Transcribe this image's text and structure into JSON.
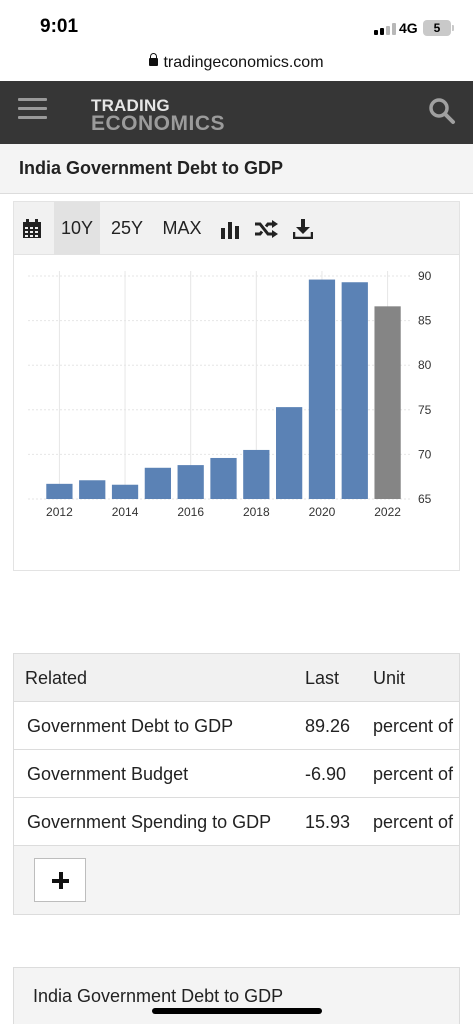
{
  "status_bar": {
    "time": "9:01",
    "network": "4G",
    "battery": "5"
  },
  "url_bar": {
    "url": "tradingeconomics.com"
  },
  "header": {
    "logo_line1": "TRADING",
    "logo_line2": "ECONOMICS"
  },
  "page": {
    "title": "India Government Debt to GDP"
  },
  "toolbar": {
    "items": [
      "10Y",
      "25Y",
      "MAX"
    ],
    "active": "10Y",
    "icons": [
      "calendar-icon",
      "bar-chart-icon",
      "shuffle-icon",
      "download-icon"
    ]
  },
  "chart_data": {
    "type": "bar",
    "title": "",
    "xlabel": "",
    "ylabel": "",
    "ylim": [
      65,
      90
    ],
    "yticks": [
      "65",
      "70",
      "75",
      "80",
      "85",
      "90"
    ],
    "xtick_labels": [
      "2012",
      "2014",
      "2016",
      "2018",
      "2020",
      "2022"
    ],
    "categories": [
      "2012",
      "2013",
      "2014",
      "2015",
      "2016",
      "2017",
      "2018",
      "2019",
      "2020",
      "2021",
      "2022"
    ],
    "values": [
      66.7,
      67.1,
      66.6,
      68.5,
      68.8,
      69.6,
      70.5,
      75.3,
      89.6,
      89.3,
      86.6
    ],
    "forecast_from_index": 10,
    "colors": {
      "bar": "#5b82b5",
      "forecast_bar": "#858585",
      "grid": "#e6e6e6",
      "tick_text": "#333333"
    },
    "grid": true,
    "y_axis_position": "right"
  },
  "related": {
    "headers": [
      "Related",
      "Last",
      "Unit"
    ],
    "rows": [
      [
        "Government Debt to GDP",
        "89.26",
        "percent of"
      ],
      [
        "Government Budget",
        "-6.90",
        "percent of"
      ],
      [
        "Government Spending to GDP",
        "15.93",
        "percent of"
      ]
    ]
  },
  "bottom_card": {
    "title": "India Government Debt to GDP"
  }
}
